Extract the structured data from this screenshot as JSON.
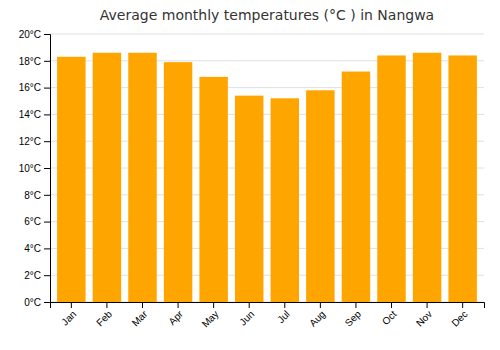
{
  "chart_data": {
    "type": "bar",
    "title": "Average monthly temperatures (°C ) in Nangwa",
    "categories": [
      "Jan",
      "Feb",
      "Mar",
      "Apr",
      "May",
      "Jun",
      "Jul",
      "Aug",
      "Sep",
      "Oct",
      "Nov",
      "Dec"
    ],
    "values": [
      18.3,
      18.6,
      18.6,
      17.9,
      16.8,
      15.4,
      15.2,
      15.8,
      17.2,
      18.4,
      18.6,
      18.4
    ],
    "color": "#FFA500",
    "ylim": [
      0,
      20
    ],
    "yticks": [
      {
        "value": 0,
        "label": "0°C"
      },
      {
        "value": 2,
        "label": "2°C"
      },
      {
        "value": 4,
        "label": "4°C"
      },
      {
        "value": 6,
        "label": "6°C"
      },
      {
        "value": 8,
        "label": "8°C"
      },
      {
        "value": 10,
        "label": "10°C"
      },
      {
        "value": 12,
        "label": "12°C"
      },
      {
        "value": 14,
        "label": "14°C"
      },
      {
        "value": 16,
        "label": "16°C"
      },
      {
        "value": 18,
        "label": "18°C"
      },
      {
        "value": 20,
        "label": "20°C"
      }
    ],
    "grid": true
  }
}
